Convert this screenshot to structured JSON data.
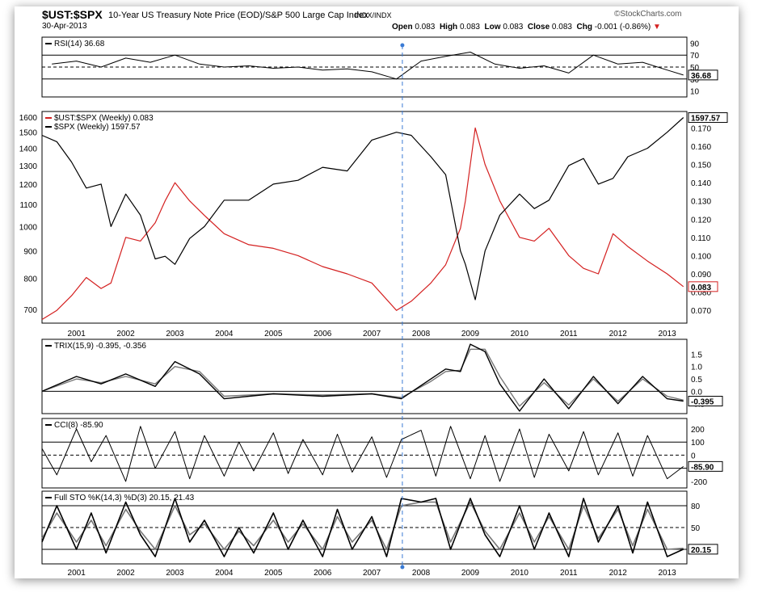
{
  "header": {
    "symbol": "$UST:$SPX",
    "description": "10-Year US Treasury Note Price (EOD)/S&P 500 Large Cap Index",
    "exchange": "INDX/INDX",
    "date": "30-Apr-2013",
    "brand": "StockCharts.com",
    "open_label": "Open",
    "open": "0.083",
    "high_label": "High",
    "high": "0.083",
    "low_label": "Low",
    "low": "0.083",
    "close_label": "Close",
    "close": "0.083",
    "chg_label": "Chg",
    "chg": "-0.001 (-0.86%)"
  },
  "colors": {
    "ratio": "#d42020",
    "spx": "#000000",
    "signal": "#777777",
    "marker": "#3a7bd5"
  },
  "chart_data": [
    {
      "type": "line",
      "panel": "RSI",
      "title": "RSI(14) 36.68",
      "current_label": "36.68",
      "yticks": [
        10,
        30,
        50,
        70,
        90
      ],
      "ylim": [
        0,
        100
      ],
      "guides": [
        30,
        50,
        70
      ],
      "x": [
        2000.5,
        2001.0,
        2001.5,
        2002.0,
        2002.5,
        2003.0,
        2003.5,
        2004.0,
        2004.5,
        2005.0,
        2005.5,
        2006.0,
        2006.5,
        2007.0,
        2007.5,
        2008.0,
        2008.5,
        2009.0,
        2009.5,
        2010.0,
        2010.5,
        2011.0,
        2011.5,
        2012.0,
        2012.5,
        2013.0,
        2013.33
      ],
      "values": [
        55,
        60,
        50,
        65,
        58,
        70,
        55,
        50,
        52,
        48,
        50,
        45,
        47,
        42,
        30,
        60,
        68,
        75,
        55,
        48,
        52,
        40,
        70,
        55,
        58,
        45,
        36.68
      ]
    },
    {
      "type": "line",
      "panel": "price",
      "legend_position": "top-left",
      "yticks_left": [
        700,
        800,
        900,
        1000,
        1100,
        1200,
        1300,
        1400,
        1500,
        1600
      ],
      "yticks_right": [
        0.07,
        0.08,
        0.09,
        0.1,
        0.11,
        0.12,
        0.13,
        0.14,
        0.15,
        0.16,
        0.17
      ],
      "ylim_left": [
        660,
        1640
      ],
      "ylim_right": [
        0.063,
        0.179
      ],
      "x_ticks": [
        "2001",
        "2002",
        "2003",
        "2004",
        "2005",
        "2006",
        "2007",
        "2008",
        "2009",
        "2010",
        "2011",
        "2012",
        "2013"
      ],
      "x_tick_values": [
        2001,
        2002,
        2003,
        2004,
        2005,
        2006,
        2007,
        2008,
        2009,
        2010,
        2011,
        2012,
        2013
      ],
      "xlim": [
        2000.3,
        2013.4
      ],
      "series": [
        {
          "name": "$UST:$SPX (Weekly) 0.083",
          "axis": "right",
          "current_label": "0.083",
          "x": [
            2000.3,
            2000.6,
            2000.9,
            2001.2,
            2001.5,
            2001.7,
            2002.0,
            2002.3,
            2002.6,
            2002.8,
            2003.0,
            2003.3,
            2003.6,
            2004.0,
            2004.5,
            2005.0,
            2005.5,
            2006.0,
            2006.5,
            2007.0,
            2007.5,
            2007.8,
            2008.2,
            2008.5,
            2008.8,
            2008.9,
            2009.1,
            2009.3,
            2009.6,
            2010.0,
            2010.3,
            2010.6,
            2011.0,
            2011.3,
            2011.6,
            2011.9,
            2012.2,
            2012.6,
            2013.0,
            2013.33
          ],
          "y": [
            0.065,
            0.07,
            0.078,
            0.088,
            0.082,
            0.085,
            0.11,
            0.108,
            0.118,
            0.13,
            0.14,
            0.13,
            0.122,
            0.112,
            0.106,
            0.104,
            0.1,
            0.094,
            0.09,
            0.085,
            0.07,
            0.075,
            0.085,
            0.095,
            0.115,
            0.13,
            0.17,
            0.15,
            0.13,
            0.11,
            0.108,
            0.115,
            0.1,
            0.093,
            0.09,
            0.112,
            0.105,
            0.097,
            0.09,
            0.083
          ]
        },
        {
          "name": "$SPX (Weekly) 1597.57",
          "axis": "left",
          "current_label": "1597.57",
          "x": [
            2000.3,
            2000.6,
            2000.9,
            2001.2,
            2001.5,
            2001.7,
            2002.0,
            2002.3,
            2002.6,
            2002.8,
            2003.0,
            2003.3,
            2003.6,
            2004.0,
            2004.5,
            2005.0,
            2005.5,
            2006.0,
            2006.5,
            2007.0,
            2007.5,
            2007.8,
            2008.2,
            2008.5,
            2008.8,
            2008.9,
            2009.1,
            2009.3,
            2009.6,
            2010.0,
            2010.3,
            2010.6,
            2011.0,
            2011.3,
            2011.6,
            2011.9,
            2012.2,
            2012.6,
            2013.0,
            2013.33
          ],
          "y": [
            1480,
            1440,
            1320,
            1180,
            1200,
            1000,
            1150,
            1050,
            870,
            880,
            850,
            950,
            1000,
            1120,
            1120,
            1200,
            1220,
            1290,
            1270,
            1450,
            1500,
            1480,
            1350,
            1250,
            900,
            850,
            730,
            900,
            1050,
            1150,
            1080,
            1120,
            1300,
            1340,
            1200,
            1230,
            1350,
            1400,
            1500,
            1597.57
          ]
        }
      ],
      "marker_x": 2007.62
    },
    {
      "type": "line",
      "panel": "TRIX",
      "title": "TRIX(15,9) -0.395, -0.356",
      "current_label": "-0.395",
      "yticks": [
        "1.5",
        "1.0",
        "0.5",
        "0.0",
        "-0.5"
      ],
      "ylim": [
        -0.9,
        2.1
      ],
      "series": [
        {
          "name": "TRIX",
          "x": [
            2000.3,
            2001.0,
            2001.5,
            2002.0,
            2002.6,
            2003.0,
            2003.5,
            2004.0,
            2005.0,
            2006.0,
            2007.0,
            2007.6,
            2008.2,
            2008.5,
            2008.8,
            2009.0,
            2009.3,
            2009.6,
            2010.0,
            2010.5,
            2011.0,
            2011.5,
            2012.0,
            2012.5,
            2013.0,
            2013.33
          ],
          "y": [
            0.0,
            0.6,
            0.3,
            0.7,
            0.2,
            1.2,
            0.7,
            -0.3,
            -0.1,
            -0.2,
            -0.1,
            -0.3,
            0.5,
            0.9,
            0.8,
            1.9,
            1.6,
            0.3,
            -0.8,
            0.5,
            -0.7,
            0.6,
            -0.5,
            0.6,
            -0.3,
            -0.395
          ]
        },
        {
          "name": "Signal",
          "x": [
            2000.3,
            2001.0,
            2001.5,
            2002.0,
            2002.6,
            2003.0,
            2003.5,
            2004.0,
            2005.0,
            2006.0,
            2007.0,
            2007.6,
            2008.2,
            2008.5,
            2008.8,
            2009.0,
            2009.3,
            2009.6,
            2010.0,
            2010.5,
            2011.0,
            2011.5,
            2012.0,
            2012.5,
            2013.0,
            2013.33
          ],
          "y": [
            0.0,
            0.5,
            0.35,
            0.6,
            0.3,
            1.0,
            0.8,
            -0.2,
            -0.1,
            -0.15,
            -0.1,
            -0.25,
            0.4,
            0.8,
            0.85,
            1.7,
            1.7,
            0.6,
            -0.6,
            0.35,
            -0.55,
            0.5,
            -0.4,
            0.5,
            -0.2,
            -0.356
          ]
        }
      ]
    },
    {
      "type": "line",
      "panel": "CCI",
      "title": "CCI(8) -85.90",
      "current_label": "-85.90",
      "yticks": [
        "200",
        "100",
        "0",
        "-100",
        "-200"
      ],
      "ylim": [
        -250,
        280
      ],
      "guides": [
        100,
        0,
        -100
      ],
      "x": [
        2000.3,
        2000.6,
        2001.0,
        2001.3,
        2001.6,
        2002.0,
        2002.3,
        2002.6,
        2003.0,
        2003.3,
        2003.6,
        2004.0,
        2004.3,
        2004.6,
        2005.0,
        2005.3,
        2005.6,
        2006.0,
        2006.3,
        2006.6,
        2007.0,
        2007.3,
        2007.6,
        2008.0,
        2008.3,
        2008.6,
        2009.0,
        2009.3,
        2009.6,
        2010.0,
        2010.3,
        2010.6,
        2011.0,
        2011.3,
        2011.6,
        2012.0,
        2012.3,
        2012.6,
        2013.0,
        2013.33
      ],
      "values": [
        50,
        -150,
        200,
        -50,
        150,
        -200,
        220,
        -100,
        180,
        -180,
        150,
        -160,
        100,
        -120,
        170,
        -140,
        120,
        -150,
        160,
        -130,
        140,
        -170,
        120,
        190,
        -160,
        220,
        -180,
        150,
        -200,
        200,
        -170,
        160,
        -120,
        180,
        -150,
        170,
        -160,
        150,
        -180,
        -85.9
      ]
    },
    {
      "type": "line",
      "panel": "STO",
      "title": "Full STO %K(14,3) %D(3) 20.15, 21.43",
      "current_label": "20.15",
      "yticks": [
        "80",
        "50",
        "20"
      ],
      "ylim": [
        0,
        100
      ],
      "guides": [
        80,
        50,
        20
      ],
      "series": [
        {
          "name": "%K",
          "x": [
            2000.3,
            2000.6,
            2001.0,
            2001.3,
            2001.6,
            2002.0,
            2002.3,
            2002.6,
            2003.0,
            2003.3,
            2003.6,
            2004.0,
            2004.3,
            2004.6,
            2005.0,
            2005.3,
            2005.6,
            2006.0,
            2006.3,
            2006.6,
            2007.0,
            2007.3,
            2007.6,
            2008.0,
            2008.3,
            2008.6,
            2009.0,
            2009.3,
            2009.6,
            2010.0,
            2010.3,
            2010.6,
            2011.0,
            2011.3,
            2011.6,
            2012.0,
            2012.3,
            2012.6,
            2013.0,
            2013.33
          ],
          "y": [
            30,
            80,
            20,
            70,
            15,
            85,
            40,
            10,
            90,
            30,
            60,
            10,
            50,
            15,
            70,
            20,
            60,
            10,
            75,
            20,
            65,
            10,
            90,
            85,
            90,
            20,
            90,
            40,
            10,
            80,
            20,
            70,
            10,
            90,
            30,
            80,
            15,
            85,
            10,
            20.15
          ]
        },
        {
          "name": "%D",
          "x": [
            2000.3,
            2000.6,
            2001.0,
            2001.3,
            2001.6,
            2002.0,
            2002.3,
            2002.6,
            2003.0,
            2003.3,
            2003.6,
            2004.0,
            2004.3,
            2004.6,
            2005.0,
            2005.3,
            2005.6,
            2006.0,
            2006.3,
            2006.6,
            2007.0,
            2007.3,
            2007.6,
            2008.0,
            2008.3,
            2008.6,
            2009.0,
            2009.3,
            2009.6,
            2010.0,
            2010.3,
            2010.6,
            2011.0,
            2011.3,
            2011.6,
            2012.0,
            2012.3,
            2012.6,
            2013.0,
            2013.33
          ],
          "y": [
            35,
            70,
            30,
            60,
            25,
            75,
            45,
            20,
            80,
            40,
            55,
            20,
            45,
            25,
            60,
            30,
            55,
            20,
            65,
            30,
            60,
            20,
            80,
            85,
            85,
            30,
            85,
            45,
            20,
            70,
            30,
            65,
            20,
            80,
            35,
            75,
            25,
            75,
            20,
            21.43
          ]
        }
      ]
    }
  ]
}
